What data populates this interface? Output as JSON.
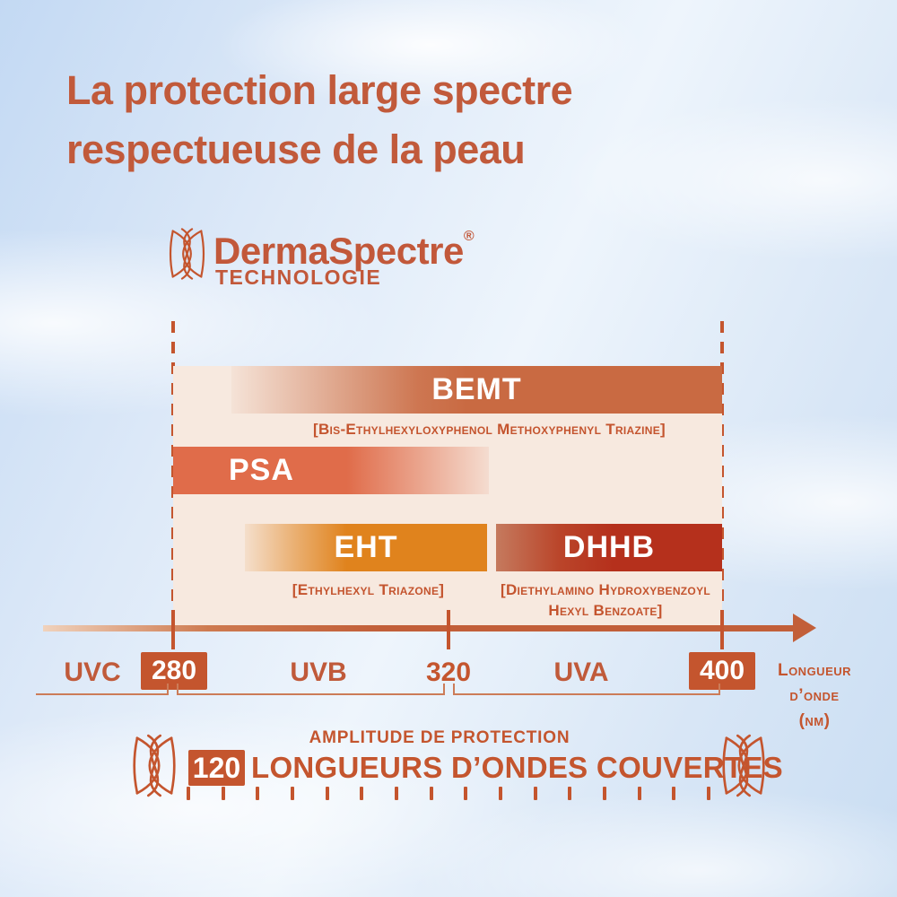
{
  "title": {
    "line1": "La protection large spectre",
    "line2": "respectueuse de la peau"
  },
  "brand": {
    "name": "DermaSpectre",
    "registered": "®",
    "subtitle": "TECHNOLOGIE"
  },
  "chart": {
    "bars": {
      "bemt": {
        "label": "BEMT",
        "chemical": "[Bis-Ethylhexyloxyphenol Methoxyphenyl Triazine]"
      },
      "psa": {
        "label": "PSA"
      },
      "eht": {
        "label": "EHT",
        "chemical": "[Ethylhexyl Triazone]"
      },
      "dhhb": {
        "label": "DHHB",
        "chemical_line1": "[Diethylamino Hydroxybenzoyl",
        "chemical_line2": "Hexyl Benzoate]"
      }
    },
    "axis": {
      "uvc": "UVC",
      "tick_280": "280",
      "uvb": "UVB",
      "tick_320": "320",
      "uva": "UVA",
      "tick_400": "400",
      "unit_line1": "Longueur",
      "unit_line2": "d’onde",
      "unit_line3": "(nm)"
    }
  },
  "amplitude": {
    "caption": "AMPLITUDE DE PROTECTION",
    "value": "120",
    "label": "LONGUEURS D’ONDES COUVERTES"
  },
  "colors": {
    "text_accent": "#c4552e",
    "title": "#c15a3b",
    "bar_bemt": "#c96a42",
    "bar_psa": "#e06c4a",
    "bar_eht": "#e0831d",
    "bar_dhhb": "#b5301c",
    "panel": "#f7e9df",
    "label_text": "#ffffff"
  },
  "chart_data": {
    "type": "bar",
    "subtype": "horizontal wavelength-coverage ranges",
    "title": "La protection large spectre respectueuse de la peau",
    "technology": "DermaSpectre® Technologie",
    "xlabel": "Longueur d’onde (nm)",
    "x_ticks": [
      280,
      320,
      400
    ],
    "x_regions": [
      {
        "name": "UVC",
        "range_nm": [
          null,
          280
        ]
      },
      {
        "name": "UVB",
        "range_nm": [
          280,
          320
        ]
      },
      {
        "name": "UVA",
        "range_nm": [
          320,
          400
        ]
      }
    ],
    "series": [
      {
        "name": "BEMT",
        "chemical": "Bis-Ethylhexyloxyphenol Methoxyphenyl Triazine",
        "coverage_nm": [
          290,
          400
        ],
        "fade": "start",
        "color": "#c96a42"
      },
      {
        "name": "PSA",
        "coverage_nm": [
          280,
          330
        ],
        "fade": "end",
        "color": "#e06c4a"
      },
      {
        "name": "EHT",
        "chemical": "Ethylhexyl Triazone",
        "coverage_nm": [
          290,
          330
        ],
        "fade": "start",
        "color": "#e0831d"
      },
      {
        "name": "DHHB",
        "chemical": "Diethylamino Hydroxybenzoyl Hexyl Benzoate",
        "coverage_nm": [
          330,
          400
        ],
        "fade": "start",
        "color": "#b5301c"
      }
    ],
    "amplitude_nm_covered": 120,
    "legend_position": "none",
    "grid": false
  }
}
